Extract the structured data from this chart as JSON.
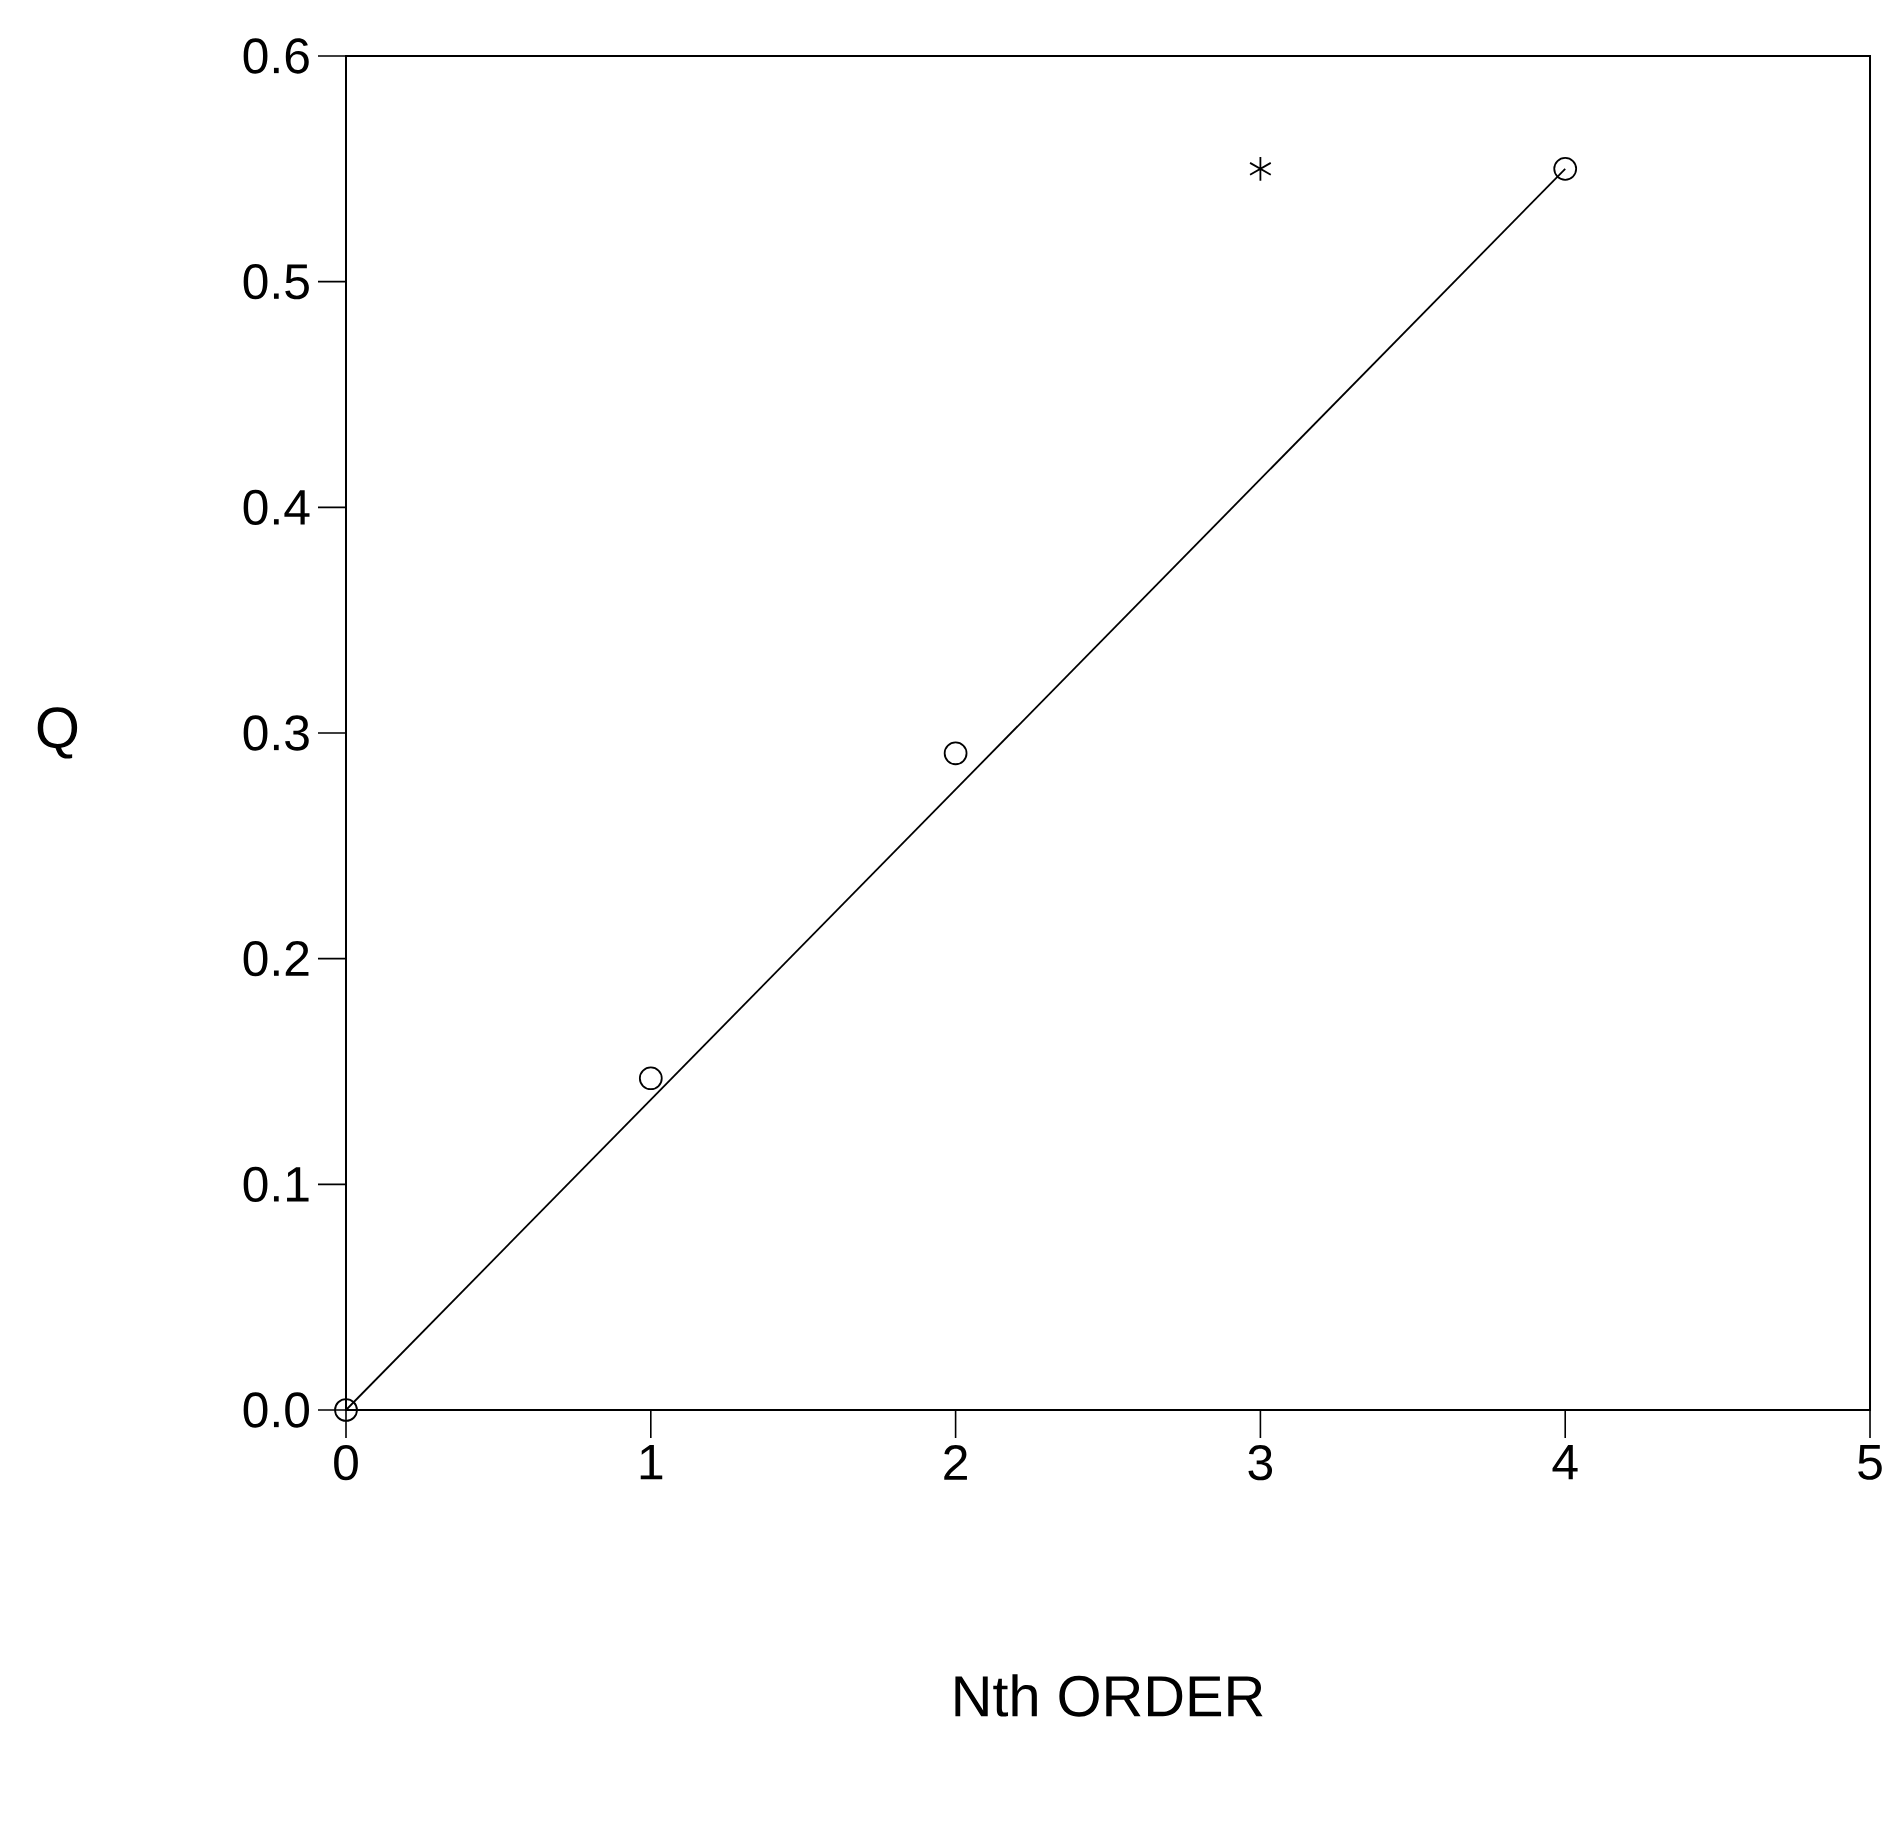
{
  "chart_data": {
    "type": "scatter",
    "xlabel": "Nth ORDER",
    "ylabel": "Q",
    "xlim": [
      0,
      5
    ],
    "ylim": [
      0,
      0.6
    ],
    "xticks": [
      0,
      1,
      2,
      3,
      4,
      5
    ],
    "yticks": [
      {
        "value": 0,
        "label": "0.0"
      },
      0.1,
      0.2,
      0.3,
      0.4,
      0.5,
      0.6
    ],
    "grid": false,
    "series": [
      {
        "marker": "circle",
        "color": "#000000",
        "x": [
          0,
          1,
          2,
          4
        ],
        "values": [
          0,
          0.147,
          0.291,
          0.55
        ]
      },
      {
        "marker": "cross",
        "color": "#000000",
        "x": [
          3
        ],
        "values": [
          0.55
        ]
      },
      {
        "type": "line",
        "marker": "none",
        "color": "#000000",
        "x": [
          0,
          4
        ],
        "values": [
          0,
          0.55
        ]
      }
    ]
  }
}
